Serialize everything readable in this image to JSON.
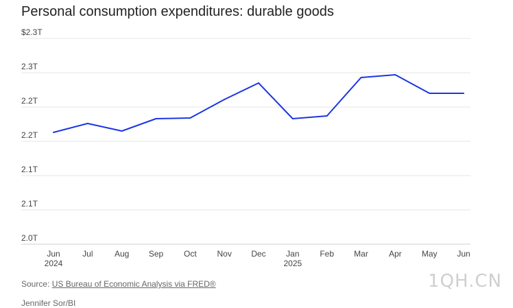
{
  "title": "Personal consumption expenditures: durable goods",
  "source_prefix": "Source:",
  "source_link": "US Bureau of Economic Analysis via FRED®",
  "byline": "Jennifer Sor/BI",
  "watermark": "1QH.CN",
  "colors": {
    "line": "#1a35e6",
    "grid": "#e4e4e4",
    "text": "#444444"
  },
  "chart_data": {
    "type": "line",
    "title": "Personal consumption expenditures: durable goods",
    "xlabel": "",
    "ylabel": "",
    "categories": [
      "Jun",
      "Jul",
      "Aug",
      "Sep",
      "Oct",
      "Nov",
      "Dec",
      "Jan",
      "Feb",
      "Mar",
      "Apr",
      "May",
      "Jun"
    ],
    "category_sublabels": [
      "2024",
      "",
      "",
      "",
      "",
      "",
      "",
      "2025",
      "",
      "",
      "",
      "",
      ""
    ],
    "y_tick_labels": [
      "2.0T",
      "2.1T",
      "2.1T",
      "2.2T",
      "2.2T",
      "2.3T",
      "$2.3T"
    ],
    "ylim": [
      2.0,
      2.3
    ],
    "grid": true,
    "legend": "none",
    "series": [
      {
        "values": [
          2.163,
          2.176,
          2.165,
          2.183,
          2.184,
          2.211,
          2.235,
          2.183,
          2.187,
          2.243,
          2.247,
          2.22,
          2.22
        ]
      }
    ]
  }
}
